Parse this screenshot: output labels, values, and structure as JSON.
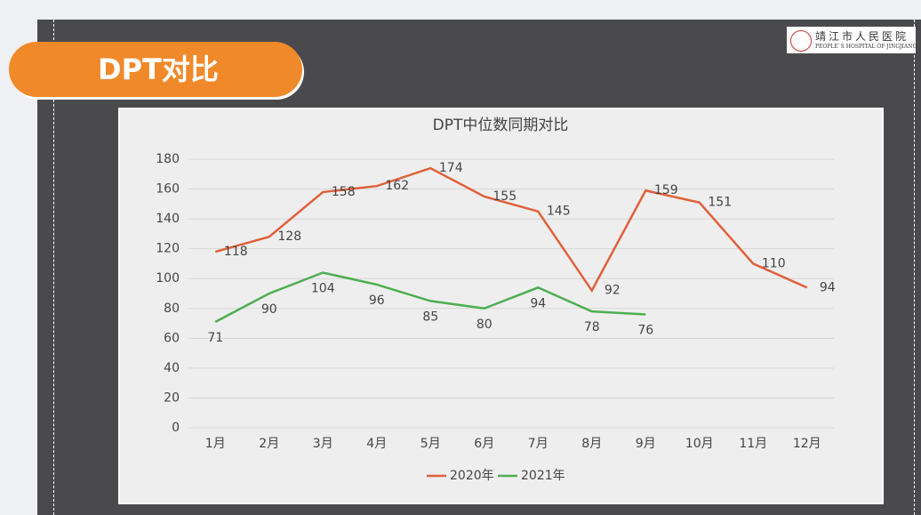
{
  "slide_title": "DPT对比",
  "logo": {
    "name": "靖江市人民医院",
    "subtitle": "PEOPLE`S HOSPITAL OF JINGJIANG"
  },
  "chart_data": {
    "type": "line",
    "title": "DPT中位数同期对比",
    "categories": [
      "1月",
      "2月",
      "3月",
      "4月",
      "5月",
      "6月",
      "7月",
      "8月",
      "9月",
      "10月",
      "11月",
      "12月"
    ],
    "series": [
      {
        "name": "2020年",
        "color": "#e0603a",
        "values": [
          118,
          128,
          158,
          162,
          174,
          155,
          145,
          92,
          159,
          151,
          110,
          94
        ]
      },
      {
        "name": "2021年",
        "color": "#4caf50",
        "values": [
          71,
          90,
          104,
          96,
          85,
          80,
          94,
          78,
          76,
          null,
          null,
          null
        ]
      }
    ],
    "ylim": [
      0,
      180
    ],
    "yticks": [
      0,
      20,
      40,
      60,
      80,
      100,
      120,
      140,
      160,
      180
    ],
    "grid": true,
    "legend": "bottom"
  }
}
